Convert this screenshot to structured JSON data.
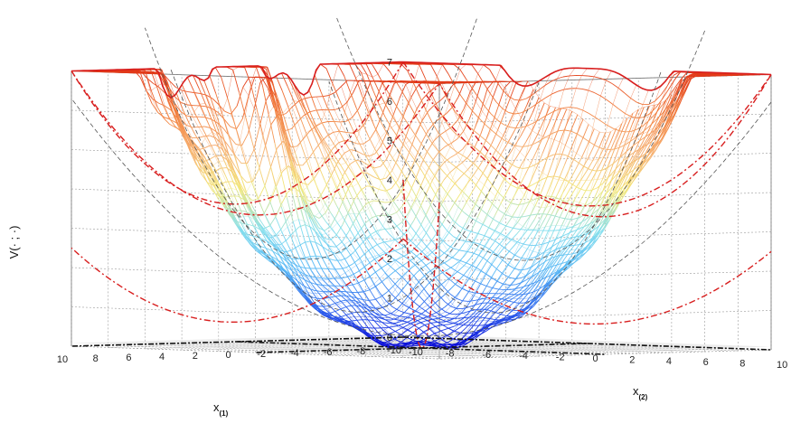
{
  "chart_data": {
    "type": "surface",
    "zlabel": "V(· ; ·)",
    "xlabel_main": "x",
    "xlabel_sub": "(1)",
    "ylabel_main": "x",
    "ylabel_sub": "(2)",
    "xlim": [
      -10,
      10
    ],
    "ylim": [
      -10,
      10
    ],
    "zlim": [
      0,
      7
    ],
    "x_ticks": [
      -10,
      -8,
      -6,
      -4,
      -2,
      0,
      2,
      4,
      6,
      8,
      10
    ],
    "y_ticks": [
      -10,
      -8,
      -6,
      -4,
      -2,
      0,
      2,
      4,
      6,
      8,
      10
    ],
    "z_ticks": [
      0,
      1,
      2,
      3,
      4,
      5,
      6,
      7
    ],
    "grid": true,
    "colormap": [
      "#0a0ad8",
      "#2f66ee",
      "#58b8f5",
      "#86e0ee",
      "#f3e87a",
      "#f6b070",
      "#f28040",
      "#e23a1a"
    ],
    "surface": "0.06*(x^2+y^2) plus oscillating ridges peaking near z = 7 at x = 0, y = -10",
    "bound_color": "#d81e1e"
  }
}
